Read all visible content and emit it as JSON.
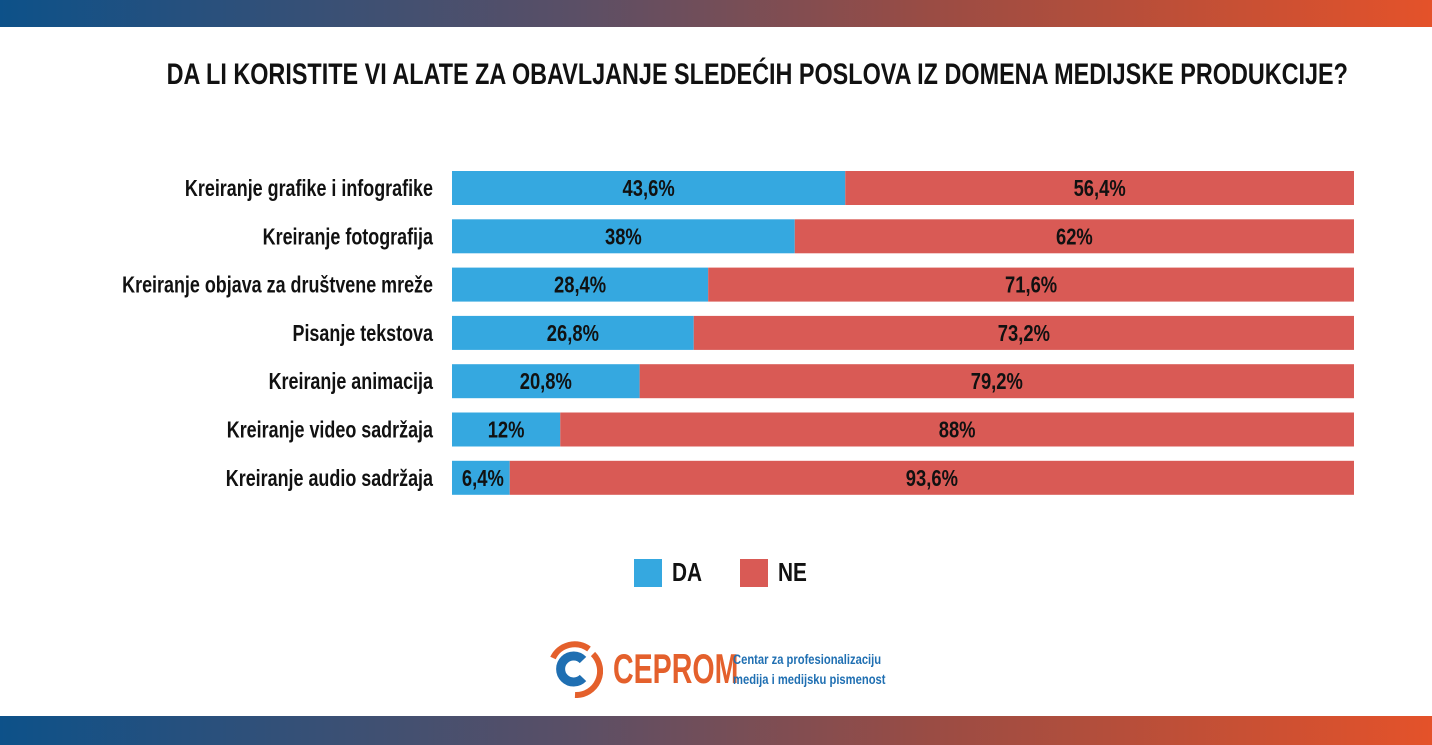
{
  "colors": {
    "da": "#35a8e0",
    "ne": "#d95a55"
  },
  "chart_data": {
    "type": "bar",
    "stacked": true,
    "orientation": "horizontal",
    "title": "DA LI KORISTITE VI ALATE ZA OBAVLJANJE SLEDEĆIH POSLOVA IZ DOMENA MEDIJSKE PRODUKCIJE?",
    "categories": [
      "Kreiranje grafike i infografike",
      "Kreiranje fotografija",
      "Kreiranje objava za društvene mreže",
      "Pisanje tekstova",
      "Kreiranje animacija",
      "Kreiranje video sadržaja",
      "Kreiranje audio sadržaja"
    ],
    "series": [
      {
        "name": "DA",
        "values": [
          43.6,
          38,
          28.4,
          26.8,
          20.8,
          12,
          6.4
        ],
        "labels": [
          "43,6%",
          "38%",
          "28,4%",
          "26,8%",
          "20,8%",
          "12%",
          "6,4%"
        ]
      },
      {
        "name": "NE",
        "values": [
          56.4,
          62,
          71.6,
          73.2,
          79.2,
          88,
          93.6
        ],
        "labels": [
          "56,4%",
          "62%",
          "71,6%",
          "73,2%",
          "79,2%",
          "88%",
          "93,6%"
        ]
      }
    ],
    "xlim": [
      0,
      100
    ],
    "grid": false,
    "legend_position": "bottom"
  },
  "logo": {
    "brand": "CEPROM",
    "tagline_1": "Centar za profesionalizaciju",
    "tagline_2": "medija i medijsku pismenost"
  }
}
